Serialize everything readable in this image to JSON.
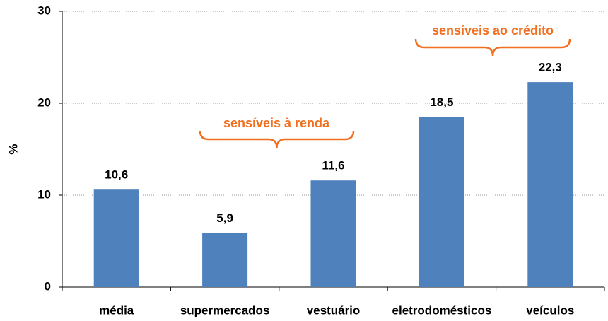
{
  "chart_data": {
    "type": "bar",
    "y_label": "%",
    "categories": [
      "média",
      "supermercados",
      "vestuário",
      "eletrodomésticos",
      "veículos"
    ],
    "values": [
      10.6,
      5.9,
      11.6,
      18.5,
      22.3
    ],
    "value_labels": [
      "10,6",
      "5,9",
      "11,6",
      "18,5",
      "22,3"
    ],
    "color": "#4f81bd",
    "ylim": [
      0,
      30
    ],
    "yticks": [
      0,
      10,
      20,
      30
    ],
    "grid": true,
    "annotations": [
      "sensíveis à renda",
      "sensíveis ao crédito"
    ]
  }
}
